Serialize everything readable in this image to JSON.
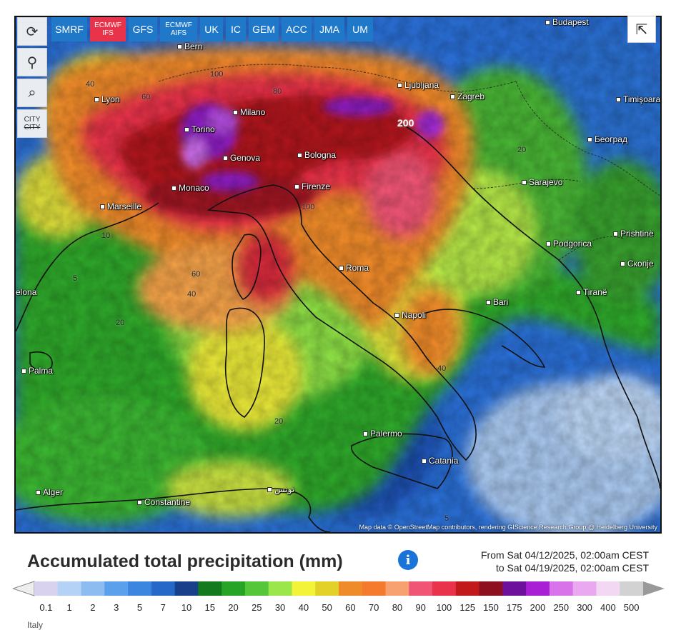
{
  "toolbar": {
    "left_tools": [
      {
        "icon": "refresh-icon",
        "glyph": "⟳"
      },
      {
        "icon": "location-pin-icon",
        "glyph": "⚲"
      },
      {
        "icon": "zoom-icon",
        "glyph": "⌕"
      },
      {
        "icon": "city-toggle-icon",
        "line1": "CITY",
        "line2": "CITY"
      }
    ],
    "models": [
      {
        "label": "SMRF",
        "active": false
      },
      {
        "label": "ECMWF IFS",
        "active": true
      },
      {
        "label": "GFS",
        "active": false
      },
      {
        "label": "ECMWF AIFS",
        "active": false
      },
      {
        "label": "UK",
        "active": false
      },
      {
        "label": "IC",
        "active": false
      },
      {
        "label": "GEM",
        "active": false
      },
      {
        "label": "ACC",
        "active": false
      },
      {
        "label": "JMA",
        "active": false
      },
      {
        "label": "UM",
        "active": false
      }
    ],
    "share_icon": "share-icon"
  },
  "map": {
    "cities": [
      {
        "name": "Budapest"
      },
      {
        "name": "Bern"
      },
      {
        "name": "Lyon"
      },
      {
        "name": "Milano"
      },
      {
        "name": "Torino"
      },
      {
        "name": "Genova"
      },
      {
        "name": "Bologna"
      },
      {
        "name": "Monaco"
      },
      {
        "name": "Firenze"
      },
      {
        "name": "Marseille"
      },
      {
        "name": "Ljubljana"
      },
      {
        "name": "Zagreb"
      },
      {
        "name": "Timişoara"
      },
      {
        "name": "Београд"
      },
      {
        "name": "Sarajevo"
      },
      {
        "name": "Podgorica"
      },
      {
        "name": "Prishtinë"
      },
      {
        "name": "Скопје"
      },
      {
        "name": "Tiranë"
      },
      {
        "name": "Roma"
      },
      {
        "name": "Bari"
      },
      {
        "name": "Napoli"
      },
      {
        "name": "Palma"
      },
      {
        "name": "Palermo"
      },
      {
        "name": "Catania"
      },
      {
        "name": "Alger"
      },
      {
        "name": "Constantine"
      },
      {
        "name": "تونس"
      },
      {
        "name": "elona"
      }
    ],
    "isoline_labels": [
      "100",
      "200",
      "60",
      "40",
      "20",
      "80",
      "5",
      "10"
    ],
    "attribution": "Map data © OpenStreetMap contributors, rendering GIScience Research Group @ Heidelberg University"
  },
  "legend": {
    "title": "Accumulated total precipitation (mm)",
    "info_icon": "info-icon",
    "period_from": "From Sat 04/12/2025, 02:00am CEST",
    "period_to": "to Sat 04/19/2025, 02:00am CEST",
    "ticks": [
      "0.1",
      "1",
      "2",
      "3",
      "5",
      "7",
      "10",
      "15",
      "20",
      "25",
      "30",
      "40",
      "50",
      "60",
      "70",
      "80",
      "90",
      "100",
      "125",
      "150",
      "175",
      "200",
      "250",
      "300",
      "400",
      "500"
    ],
    "colors": [
      "#d9d2ee",
      "#b4d2f5",
      "#8cbcf0",
      "#5aa0ea",
      "#3c86df",
      "#2568c8",
      "#1a3f8a",
      "#137a1d",
      "#27a325",
      "#55c53a",
      "#9be64a",
      "#f3f33a",
      "#e3d12a",
      "#f08b2a",
      "#f57a2e",
      "#f7a070",
      "#f05575",
      "#e8334a",
      "#c21a1a",
      "#8e0f1e",
      "#6d109c",
      "#a91fd6",
      "#d873ea",
      "#e9a8f0",
      "#f3d8f3",
      "#d2d2d2"
    ]
  },
  "footer": {
    "text": "Italy"
  }
}
